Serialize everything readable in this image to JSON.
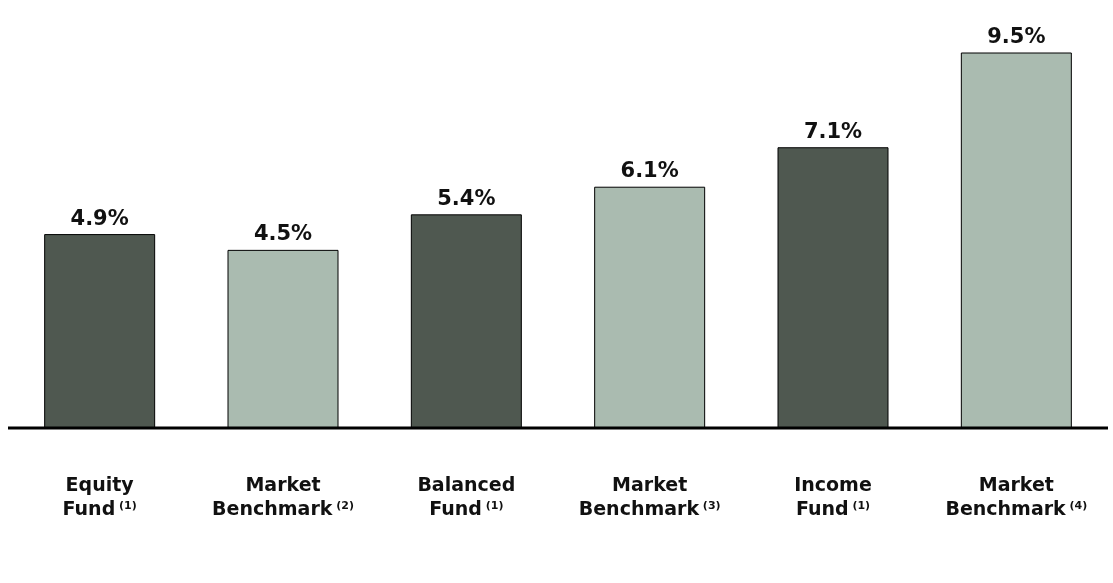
{
  "chart_data": {
    "type": "bar",
    "categories": [
      "Equity Fund $^{(1)}$",
      "Market Benchmark $^{(2)}$",
      "Balanced Fund $^{(1)}$",
      "Market Benchmark $^{(3)}$",
      "Income Fund $^{(1)}$",
      "Market Benchmark $^{(4)}$"
    ],
    "values": [
      4.9,
      4.5,
      5.4,
      6.1,
      7.1,
      9.5
    ],
    "value_labels": [
      "4.9%",
      "4.5%",
      "5.4%",
      "6.1%",
      "7.1%",
      "9.5%"
    ],
    "colors": [
      "#4f5850",
      "#aabbb0",
      "#4f5850",
      "#aabbb0",
      "#4f5850",
      "#aabbb0"
    ],
    "grid": false,
    "legend": false
  }
}
